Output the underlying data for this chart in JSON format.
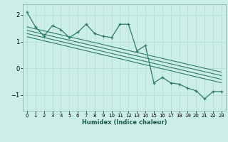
{
  "xlabel": "Humidex (Indice chaleur)",
  "bg_color": "#cceee8",
  "grid_color": "#b8ddd8",
  "line_color": "#2d7a6a",
  "xlim": [
    -0.5,
    23.5
  ],
  "ylim": [
    -1.6,
    2.4
  ],
  "yticks": [
    -1,
    0,
    1,
    2
  ],
  "xticks": [
    0,
    1,
    2,
    3,
    4,
    5,
    6,
    7,
    8,
    9,
    10,
    11,
    12,
    13,
    14,
    15,
    16,
    17,
    18,
    19,
    20,
    21,
    22,
    23
  ],
  "main_series_x": [
    0,
    1,
    2,
    3,
    4,
    5,
    6,
    7,
    8,
    9,
    10,
    11,
    12,
    13,
    14,
    15,
    16,
    17,
    18,
    19,
    20,
    21,
    22,
    23
  ],
  "main_series_y": [
    2.1,
    1.55,
    1.2,
    1.6,
    1.45,
    1.15,
    1.35,
    1.65,
    1.3,
    1.2,
    1.15,
    1.65,
    1.65,
    0.65,
    0.85,
    -0.55,
    -0.35,
    -0.55,
    -0.6,
    -0.75,
    -0.85,
    -1.15,
    -0.88,
    -0.88
  ],
  "trend_lines": [
    {
      "x": [
        0,
        23
      ],
      "y": [
        1.55,
        -0.15
      ]
    },
    {
      "x": [
        0,
        23
      ],
      "y": [
        1.42,
        -0.28
      ]
    },
    {
      "x": [
        0,
        23
      ],
      "y": [
        1.3,
        -0.42
      ]
    },
    {
      "x": [
        0,
        23
      ],
      "y": [
        1.18,
        -0.55
      ]
    }
  ]
}
